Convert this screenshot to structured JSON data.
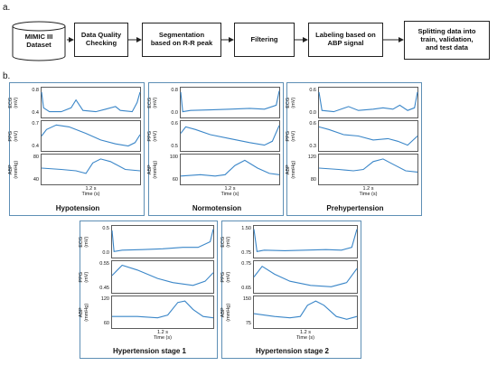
{
  "figure": {
    "label_a": "a.",
    "label_b": "b.",
    "pipeline": [
      {
        "line1": "MIMIC III",
        "line2": "Dataset"
      },
      {
        "line1": "Data Quality",
        "line2": "Checking"
      },
      {
        "line1": "Segmentation",
        "line2": "based on R-R peak"
      },
      {
        "line1": "Filtering",
        "line2": ""
      },
      {
        "line1": "Labeling based on",
        "line2": "ABP signal"
      },
      {
        "line1": "Splitting data into",
        "line2": "train, validation,",
        "line3": "and test data"
      }
    ],
    "axis_labels": {
      "ecg": {
        "name": "ECG",
        "unit": "(mV)"
      },
      "ppg": {
        "name": "PPG",
        "unit": "(mV)"
      },
      "abp": {
        "name": "ABP",
        "unit": "(mmHg)"
      }
    },
    "time_scale": {
      "bar": "1.2 s",
      "axis": "Time (s)"
    },
    "panels": [
      {
        "title": "Hypotension",
        "ecg_ticks": [
          "0.8",
          "0.4"
        ],
        "ppg_ticks": [
          "0.7",
          "0.4"
        ],
        "abp_ticks": [
          "80",
          "40"
        ]
      },
      {
        "title": "Normotension",
        "ecg_ticks": [
          "0.8",
          "0.0"
        ],
        "ppg_ticks": [
          "0.6",
          "0.5"
        ],
        "abp_ticks": [
          "100",
          "60"
        ]
      },
      {
        "title": "Prehypertension",
        "ecg_ticks": [
          "0.6",
          "0.0"
        ],
        "ppg_ticks": [
          "0.6",
          "0.3"
        ],
        "abp_ticks": [
          "120",
          "80"
        ]
      },
      {
        "title": "Hypertension stage 1",
        "ecg_ticks": [
          "0.5",
          "0.0"
        ],
        "ppg_ticks": [
          "0.55",
          "0.45"
        ],
        "abp_ticks": [
          "120",
          "60"
        ]
      },
      {
        "title": "Hypertension stage 2",
        "ecg_ticks": [
          "1.50",
          "0.75"
        ],
        "ppg_ticks": [
          "0.75",
          "0.65"
        ],
        "abp_ticks": [
          "150",
          "75"
        ]
      }
    ]
  }
}
